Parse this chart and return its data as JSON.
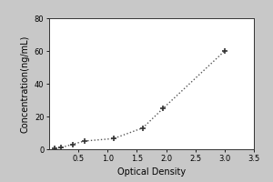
{
  "x": [
    0.1,
    0.2,
    0.4,
    0.6,
    1.1,
    1.6,
    1.95,
    3.0
  ],
  "y": [
    0.5,
    1.0,
    3.0,
    5.0,
    6.5,
    13.0,
    25.0,
    60.0
  ],
  "xlabel": "Optical Density",
  "ylabel": "Concentration(ng/mL)",
  "xlim": [
    0,
    3.5
  ],
  "ylim": [
    0,
    80
  ],
  "xticks": [
    0.5,
    1.0,
    1.5,
    2.0,
    2.5,
    3.0,
    3.5
  ],
  "yticks": [
    0,
    20,
    40,
    60,
    80
  ],
  "line_color": "#555555",
  "marker_color": "#333333",
  "marker": "+",
  "marker_size": 5,
  "line_style": "dotted",
  "background_color": "#ffffff",
  "outer_background": "#c8c8c8",
  "tick_label_fontsize": 6,
  "axis_label_fontsize": 7
}
